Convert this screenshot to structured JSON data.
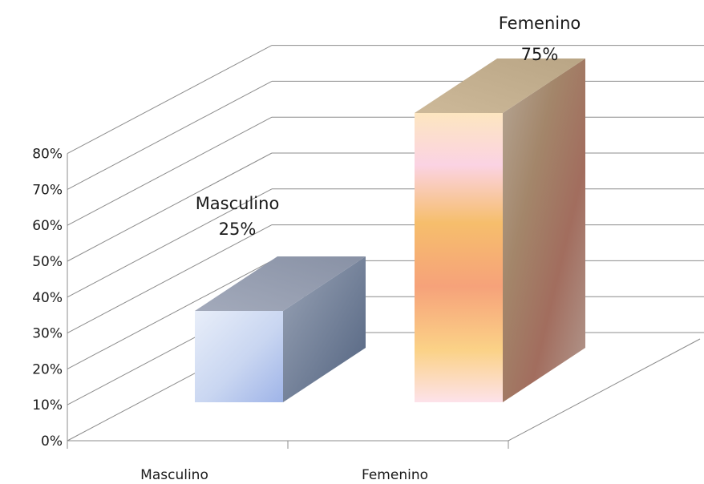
{
  "chart_data": {
    "type": "bar",
    "categories": [
      "Masculino",
      "Femenino"
    ],
    "values": [
      25,
      75
    ],
    "value_unit": "%",
    "data_labels": [
      {
        "category": "Masculino",
        "value": "25%"
      },
      {
        "category": "Femenino",
        "value": "75%"
      }
    ],
    "y_ticks": [
      "0%",
      "10%",
      "20%",
      "30%",
      "40%",
      "50%",
      "60%",
      "70%",
      "80%"
    ],
    "ylim": [
      0,
      80
    ],
    "grid": true,
    "legend": false,
    "style": "3d-column",
    "colors": {
      "Masculino": "#c5d3ee",
      "Femenino": "#f6b27a"
    }
  }
}
